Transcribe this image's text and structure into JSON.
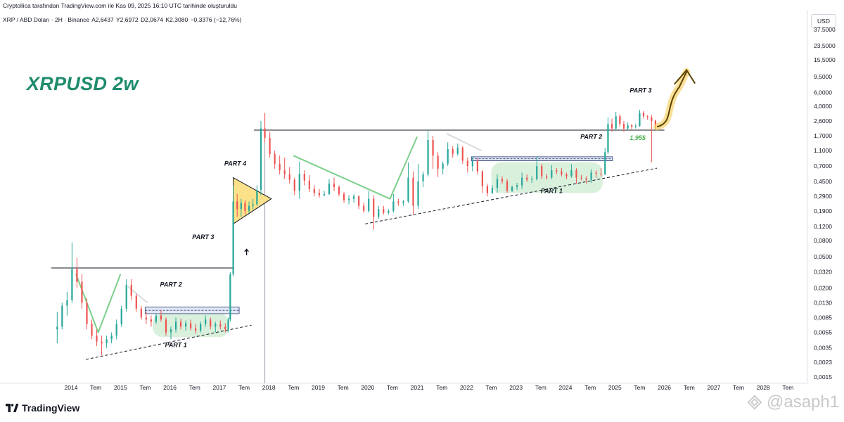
{
  "header": {
    "attribution": "Cryptollica tarafından TradingView.com ile Kas 09, 2025 16:10 UTC tarihinde oluşturuldu"
  },
  "symbol_bar": {
    "symbol": "XRP / ABD Doları · 2H · Binance",
    "open": "A2,6437",
    "high": "Y2,6972",
    "low": "D2,0674",
    "close": "K2,3080",
    "change": "−0,3376 (−12,76%)"
  },
  "title_overlay": "XRPUSD 2w",
  "currency": "USD",
  "logo_text": "TradingView",
  "watermark": "@asaph1",
  "colors": {
    "up": "#26a69a",
    "down": "#ef5350",
    "accent_green": "#1f8b6d",
    "highlight": "#f5c542"
  },
  "chart_data": {
    "type": "candlestick",
    "scale": "log",
    "x_ticks": [
      "2014",
      "Tem",
      "2015",
      "Tem",
      "2016",
      "Tem",
      "2017",
      "Tem",
      "2018",
      "Tem",
      "2019",
      "Tem",
      "2020",
      "Tem",
      "2021",
      "Tem",
      "2022",
      "Tem",
      "2023",
      "Tem",
      "2024",
      "Tem",
      "2025",
      "Tem",
      "2026",
      "Tem",
      "2027",
      "Tem",
      "2028",
      "Tem"
    ],
    "y_ticks": [
      {
        "value": 37.5,
        "label": "37,5000"
      },
      {
        "value": 23.5,
        "label": "23,5000"
      },
      {
        "value": 15.5,
        "label": "15,5000"
      },
      {
        "value": 9.5,
        "label": "9,5000"
      },
      {
        "value": 6.0,
        "label": "6,0000"
      },
      {
        "value": 4.0,
        "label": "4,0000"
      },
      {
        "value": 2.6,
        "label": "2,6000"
      },
      {
        "value": 1.7,
        "label": "1,7000"
      },
      {
        "value": 1.1,
        "label": "1,1000"
      },
      {
        "value": 0.7,
        "label": "0,7000"
      },
      {
        "value": 0.45,
        "label": "0,4500"
      },
      {
        "value": 0.29,
        "label": "0,2900"
      },
      {
        "value": 0.19,
        "label": "0,1900"
      },
      {
        "value": 0.12,
        "label": "0,1200"
      },
      {
        "value": 0.08,
        "label": "0,0800"
      },
      {
        "value": 0.05,
        "label": "0,0500"
      },
      {
        "value": 0.032,
        "label": "0,0320"
      },
      {
        "value": 0.02,
        "label": "0,0200"
      },
      {
        "value": 0.013,
        "label": "0,0130"
      },
      {
        "value": 0.0085,
        "label": "0,0085"
      },
      {
        "value": 0.0055,
        "label": "0,0055"
      },
      {
        "value": 0.0035,
        "label": "0,0035"
      },
      {
        "value": 0.0023,
        "label": "0,0023"
      },
      {
        "value": 0.0015,
        "label": "0,0015"
      }
    ],
    "annotations": [
      {
        "text": "PART 1",
        "year": 2015.9,
        "price": 0.0036
      },
      {
        "text": "PART 2",
        "year": 2015.8,
        "price": 0.021
      },
      {
        "text": "PART 3",
        "year": 2016.45,
        "price": 0.083
      },
      {
        "text": "PART 4",
        "year": 2017.1,
        "price": 0.71
      },
      {
        "text": "PART 1",
        "year": 2023.5,
        "price": 0.32
      },
      {
        "text": "PART 2",
        "year": 2024.3,
        "price": 1.55
      },
      {
        "text": "PART 3",
        "year": 2025.3,
        "price": 6.0
      }
    ],
    "price_label": {
      "text": "1,95$",
      "year": 2025.3,
      "price": 1.5
    },
    "levels": [
      {
        "price": 0.036,
        "from": 2013.6,
        "to": 2017.3
      },
      {
        "price": 2.0,
        "from": 2017.7,
        "to": 2026.0
      }
    ],
    "series": [
      {
        "t": 2013.72,
        "o": 0.006,
        "h": 0.01,
        "l": 0.004,
        "c": 0.0065
      },
      {
        "t": 2013.82,
        "o": 0.0065,
        "h": 0.013,
        "l": 0.006,
        "c": 0.012
      },
      {
        "t": 2013.92,
        "o": 0.012,
        "h": 0.018,
        "l": 0.009,
        "c": 0.014
      },
      {
        "t": 2014.02,
        "o": 0.014,
        "h": 0.076,
        "l": 0.013,
        "c": 0.035
      },
      {
        "t": 2014.12,
        "o": 0.035,
        "h": 0.048,
        "l": 0.02,
        "c": 0.024
      },
      {
        "t": 2014.22,
        "o": 0.024,
        "h": 0.03,
        "l": 0.011,
        "c": 0.013
      },
      {
        "t": 2014.32,
        "o": 0.013,
        "h": 0.015,
        "l": 0.006,
        "c": 0.007
      },
      {
        "t": 2014.42,
        "o": 0.007,
        "h": 0.008,
        "l": 0.0045,
        "c": 0.005
      },
      {
        "t": 2014.52,
        "o": 0.005,
        "h": 0.006,
        "l": 0.0037,
        "c": 0.0042
      },
      {
        "t": 2014.62,
        "o": 0.0042,
        "h": 0.005,
        "l": 0.0028,
        "c": 0.004
      },
      {
        "t": 2014.72,
        "o": 0.004,
        "h": 0.005,
        "l": 0.0035,
        "c": 0.0045
      },
      {
        "t": 2014.82,
        "o": 0.0045,
        "h": 0.0055,
        "l": 0.004,
        "c": 0.005
      },
      {
        "t": 2014.92,
        "o": 0.005,
        "h": 0.008,
        "l": 0.0045,
        "c": 0.007
      },
      {
        "t": 2015.02,
        "o": 0.007,
        "h": 0.012,
        "l": 0.0065,
        "c": 0.011
      },
      {
        "t": 2015.12,
        "o": 0.011,
        "h": 0.026,
        "l": 0.01,
        "c": 0.022
      },
      {
        "t": 2015.22,
        "o": 0.022,
        "h": 0.026,
        "l": 0.014,
        "c": 0.016
      },
      {
        "t": 2015.32,
        "o": 0.016,
        "h": 0.017,
        "l": 0.01,
        "c": 0.011
      },
      {
        "t": 2015.42,
        "o": 0.011,
        "h": 0.012,
        "l": 0.008,
        "c": 0.0085
      },
      {
        "t": 2015.52,
        "o": 0.0085,
        "h": 0.01,
        "l": 0.007,
        "c": 0.008
      },
      {
        "t": 2015.62,
        "o": 0.008,
        "h": 0.009,
        "l": 0.0065,
        "c": 0.0075
      },
      {
        "t": 2015.72,
        "o": 0.0075,
        "h": 0.0095,
        "l": 0.007,
        "c": 0.009
      },
      {
        "t": 2015.82,
        "o": 0.009,
        "h": 0.0105,
        "l": 0.0075,
        "c": 0.008
      },
      {
        "t": 2015.92,
        "o": 0.008,
        "h": 0.0085,
        "l": 0.005,
        "c": 0.0055
      },
      {
        "t": 2016.02,
        "o": 0.0055,
        "h": 0.0065,
        "l": 0.0045,
        "c": 0.006
      },
      {
        "t": 2016.12,
        "o": 0.006,
        "h": 0.0085,
        "l": 0.0055,
        "c": 0.0075
      },
      {
        "t": 2016.22,
        "o": 0.0075,
        "h": 0.0082,
        "l": 0.006,
        "c": 0.0065
      },
      {
        "t": 2016.32,
        "o": 0.0065,
        "h": 0.0078,
        "l": 0.0058,
        "c": 0.0072
      },
      {
        "t": 2016.42,
        "o": 0.0072,
        "h": 0.008,
        "l": 0.0058,
        "c": 0.0062
      },
      {
        "t": 2016.52,
        "o": 0.0062,
        "h": 0.007,
        "l": 0.0053,
        "c": 0.0058
      },
      {
        "t": 2016.62,
        "o": 0.0058,
        "h": 0.0075,
        "l": 0.0055,
        "c": 0.007
      },
      {
        "t": 2016.72,
        "o": 0.007,
        "h": 0.009,
        "l": 0.0065,
        "c": 0.008
      },
      {
        "t": 2016.82,
        "o": 0.008,
        "h": 0.0085,
        "l": 0.006,
        "c": 0.0065
      },
      {
        "t": 2016.92,
        "o": 0.0065,
        "h": 0.0075,
        "l": 0.0055,
        "c": 0.007
      },
      {
        "t": 2017.02,
        "o": 0.007,
        "h": 0.0078,
        "l": 0.006,
        "c": 0.0065
      },
      {
        "t": 2017.12,
        "o": 0.0065,
        "h": 0.0072,
        "l": 0.0055,
        "c": 0.006
      },
      {
        "t": 2017.18,
        "o": 0.006,
        "h": 0.0085,
        "l": 0.0055,
        "c": 0.008
      },
      {
        "t": 2017.22,
        "o": 0.008,
        "h": 0.032,
        "l": 0.0075,
        "c": 0.03
      },
      {
        "t": 2017.28,
        "o": 0.03,
        "h": 0.4,
        "l": 0.028,
        "c": 0.25
      },
      {
        "t": 2017.36,
        "o": 0.25,
        "h": 0.31,
        "l": 0.16,
        "c": 0.2
      },
      {
        "t": 2017.44,
        "o": 0.2,
        "h": 0.27,
        "l": 0.16,
        "c": 0.24
      },
      {
        "t": 2017.52,
        "o": 0.24,
        "h": 0.26,
        "l": 0.17,
        "c": 0.19
      },
      {
        "t": 2017.6,
        "o": 0.19,
        "h": 0.25,
        "l": 0.18,
        "c": 0.22
      },
      {
        "t": 2017.68,
        "o": 0.22,
        "h": 0.27,
        "l": 0.2,
        "c": 0.23
      },
      {
        "t": 2017.76,
        "o": 0.23,
        "h": 0.4,
        "l": 0.22,
        "c": 0.35
      },
      {
        "t": 2017.84,
        "o": 0.35,
        "h": 2.6,
        "l": 0.3,
        "c": 2.1
      },
      {
        "t": 2017.92,
        "o": 2.1,
        "h": 3.3,
        "l": 1.4,
        "c": 1.6
      },
      {
        "t": 2018.02,
        "o": 1.6,
        "h": 1.9,
        "l": 0.9,
        "c": 1.0
      },
      {
        "t": 2018.12,
        "o": 1.0,
        "h": 1.1,
        "l": 0.65,
        "c": 0.75
      },
      {
        "t": 2018.22,
        "o": 0.75,
        "h": 0.95,
        "l": 0.55,
        "c": 0.62
      },
      {
        "t": 2018.32,
        "o": 0.62,
        "h": 0.9,
        "l": 0.48,
        "c": 0.55
      },
      {
        "t": 2018.42,
        "o": 0.55,
        "h": 0.68,
        "l": 0.42,
        "c": 0.47
      },
      {
        "t": 2018.52,
        "o": 0.47,
        "h": 0.5,
        "l": 0.3,
        "c": 0.34
      },
      {
        "t": 2018.62,
        "o": 0.34,
        "h": 0.8,
        "l": 0.27,
        "c": 0.56
      },
      {
        "t": 2018.72,
        "o": 0.56,
        "h": 0.62,
        "l": 0.4,
        "c": 0.46
      },
      {
        "t": 2018.82,
        "o": 0.46,
        "h": 0.54,
        "l": 0.33,
        "c": 0.36
      },
      {
        "t": 2018.92,
        "o": 0.36,
        "h": 0.4,
        "l": 0.29,
        "c": 0.32
      },
      {
        "t": 2019.02,
        "o": 0.32,
        "h": 0.36,
        "l": 0.28,
        "c": 0.3
      },
      {
        "t": 2019.12,
        "o": 0.3,
        "h": 0.34,
        "l": 0.29,
        "c": 0.31
      },
      {
        "t": 2019.22,
        "o": 0.31,
        "h": 0.48,
        "l": 0.3,
        "c": 0.42
      },
      {
        "t": 2019.32,
        "o": 0.42,
        "h": 0.5,
        "l": 0.34,
        "c": 0.38
      },
      {
        "t": 2019.42,
        "o": 0.38,
        "h": 0.4,
        "l": 0.29,
        "c": 0.31
      },
      {
        "t": 2019.52,
        "o": 0.31,
        "h": 0.33,
        "l": 0.24,
        "c": 0.26
      },
      {
        "t": 2019.62,
        "o": 0.26,
        "h": 0.3,
        "l": 0.23,
        "c": 0.27
      },
      {
        "t": 2019.72,
        "o": 0.27,
        "h": 0.31,
        "l": 0.24,
        "c": 0.29
      },
      {
        "t": 2019.82,
        "o": 0.29,
        "h": 0.3,
        "l": 0.2,
        "c": 0.22
      },
      {
        "t": 2019.92,
        "o": 0.22,
        "h": 0.24,
        "l": 0.18,
        "c": 0.19
      },
      {
        "t": 2020.02,
        "o": 0.19,
        "h": 0.34,
        "l": 0.18,
        "c": 0.27
      },
      {
        "t": 2020.12,
        "o": 0.27,
        "h": 0.3,
        "l": 0.11,
        "c": 0.16
      },
      {
        "t": 2020.22,
        "o": 0.16,
        "h": 0.22,
        "l": 0.15,
        "c": 0.2
      },
      {
        "t": 2020.32,
        "o": 0.2,
        "h": 0.22,
        "l": 0.17,
        "c": 0.18
      },
      {
        "t": 2020.42,
        "o": 0.18,
        "h": 0.2,
        "l": 0.17,
        "c": 0.19
      },
      {
        "t": 2020.52,
        "o": 0.19,
        "h": 0.31,
        "l": 0.18,
        "c": 0.25
      },
      {
        "t": 2020.62,
        "o": 0.25,
        "h": 0.27,
        "l": 0.22,
        "c": 0.24
      },
      {
        "t": 2020.72,
        "o": 0.24,
        "h": 0.26,
        "l": 0.22,
        "c": 0.25
      },
      {
        "t": 2020.82,
        "o": 0.25,
        "h": 0.78,
        "l": 0.24,
        "c": 0.5
      },
      {
        "t": 2020.92,
        "o": 0.5,
        "h": 0.6,
        "l": 0.17,
        "c": 0.22
      },
      {
        "t": 2021.02,
        "o": 0.22,
        "h": 0.75,
        "l": 0.2,
        "c": 0.45
      },
      {
        "t": 2021.12,
        "o": 0.45,
        "h": 0.6,
        "l": 0.38,
        "c": 0.55
      },
      {
        "t": 2021.22,
        "o": 0.55,
        "h": 1.96,
        "l": 0.52,
        "c": 1.5
      },
      {
        "t": 2021.32,
        "o": 1.5,
        "h": 1.7,
        "l": 0.65,
        "c": 0.95
      },
      {
        "t": 2021.42,
        "o": 0.95,
        "h": 1.05,
        "l": 0.51,
        "c": 0.65
      },
      {
        "t": 2021.52,
        "o": 0.65,
        "h": 0.8,
        "l": 0.55,
        "c": 0.75
      },
      {
        "t": 2021.62,
        "o": 0.75,
        "h": 1.4,
        "l": 0.7,
        "c": 1.15
      },
      {
        "t": 2021.72,
        "o": 1.15,
        "h": 1.25,
        "l": 0.9,
        "c": 1.0
      },
      {
        "t": 2021.82,
        "o": 1.0,
        "h": 1.35,
        "l": 0.95,
        "c": 1.2
      },
      {
        "t": 2021.92,
        "o": 1.2,
        "h": 1.25,
        "l": 0.75,
        "c": 0.82
      },
      {
        "t": 2022.02,
        "o": 0.82,
        "h": 0.9,
        "l": 0.58,
        "c": 0.7
      },
      {
        "t": 2022.12,
        "o": 0.7,
        "h": 0.92,
        "l": 0.6,
        "c": 0.82
      },
      {
        "t": 2022.22,
        "o": 0.82,
        "h": 0.88,
        "l": 0.55,
        "c": 0.6
      },
      {
        "t": 2022.32,
        "o": 0.6,
        "h": 0.62,
        "l": 0.32,
        "c": 0.39
      },
      {
        "t": 2022.42,
        "o": 0.39,
        "h": 0.42,
        "l": 0.29,
        "c": 0.32
      },
      {
        "t": 2022.52,
        "o": 0.32,
        "h": 0.4,
        "l": 0.31,
        "c": 0.37
      },
      {
        "t": 2022.62,
        "o": 0.37,
        "h": 0.55,
        "l": 0.32,
        "c": 0.48
      },
      {
        "t": 2022.72,
        "o": 0.48,
        "h": 0.52,
        "l": 0.42,
        "c": 0.45
      },
      {
        "t": 2022.82,
        "o": 0.45,
        "h": 0.48,
        "l": 0.32,
        "c": 0.34
      },
      {
        "t": 2022.92,
        "o": 0.34,
        "h": 0.4,
        "l": 0.33,
        "c": 0.38
      },
      {
        "t": 2023.02,
        "o": 0.38,
        "h": 0.43,
        "l": 0.35,
        "c": 0.4
      },
      {
        "t": 2023.12,
        "o": 0.4,
        "h": 0.58,
        "l": 0.36,
        "c": 0.5
      },
      {
        "t": 2023.22,
        "o": 0.5,
        "h": 0.55,
        "l": 0.44,
        "c": 0.47
      },
      {
        "t": 2023.32,
        "o": 0.47,
        "h": 0.52,
        "l": 0.43,
        "c": 0.48
      },
      {
        "t": 2023.42,
        "o": 0.48,
        "h": 0.93,
        "l": 0.46,
        "c": 0.7
      },
      {
        "t": 2023.52,
        "o": 0.7,
        "h": 0.75,
        "l": 0.48,
        "c": 0.52
      },
      {
        "t": 2023.62,
        "o": 0.52,
        "h": 0.56,
        "l": 0.47,
        "c": 0.5
      },
      {
        "t": 2023.72,
        "o": 0.5,
        "h": 0.72,
        "l": 0.48,
        "c": 0.62
      },
      {
        "t": 2023.82,
        "o": 0.62,
        "h": 0.66,
        "l": 0.55,
        "c": 0.6
      },
      {
        "t": 2023.92,
        "o": 0.6,
        "h": 0.66,
        "l": 0.52,
        "c": 0.55
      },
      {
        "t": 2024.02,
        "o": 0.55,
        "h": 0.58,
        "l": 0.48,
        "c": 0.52
      },
      {
        "t": 2024.12,
        "o": 0.52,
        "h": 0.74,
        "l": 0.5,
        "c": 0.62
      },
      {
        "t": 2024.22,
        "o": 0.62,
        "h": 0.66,
        "l": 0.42,
        "c": 0.5
      },
      {
        "t": 2024.32,
        "o": 0.5,
        "h": 0.54,
        "l": 0.46,
        "c": 0.49
      },
      {
        "t": 2024.42,
        "o": 0.49,
        "h": 0.52,
        "l": 0.42,
        "c": 0.47
      },
      {
        "t": 2024.52,
        "o": 0.47,
        "h": 0.64,
        "l": 0.43,
        "c": 0.58
      },
      {
        "t": 2024.62,
        "o": 0.58,
        "h": 0.62,
        "l": 0.5,
        "c": 0.56
      },
      {
        "t": 2024.72,
        "o": 0.56,
        "h": 0.66,
        "l": 0.52,
        "c": 0.55
      },
      {
        "t": 2024.8,
        "o": 0.55,
        "h": 1.2,
        "l": 0.54,
        "c": 1.05
      },
      {
        "t": 2024.86,
        "o": 1.05,
        "h": 2.9,
        "l": 1.0,
        "c": 2.4
      },
      {
        "t": 2024.94,
        "o": 2.4,
        "h": 2.8,
        "l": 1.9,
        "c": 2.1
      },
      {
        "t": 2025.02,
        "o": 2.1,
        "h": 3.4,
        "l": 2.0,
        "c": 3.0
      },
      {
        "t": 2025.1,
        "o": 3.0,
        "h": 3.2,
        "l": 2.2,
        "c": 2.4
      },
      {
        "t": 2025.18,
        "o": 2.4,
        "h": 2.6,
        "l": 1.9,
        "c": 2.1
      },
      {
        "t": 2025.26,
        "o": 2.1,
        "h": 2.5,
        "l": 2.0,
        "c": 2.3
      },
      {
        "t": 2025.34,
        "o": 2.3,
        "h": 2.4,
        "l": 2.05,
        "c": 2.2
      },
      {
        "t": 2025.42,
        "o": 2.2,
        "h": 2.4,
        "l": 2.1,
        "c": 2.25
      },
      {
        "t": 2025.5,
        "o": 2.25,
        "h": 3.6,
        "l": 2.2,
        "c": 3.3
      },
      {
        "t": 2025.58,
        "o": 3.3,
        "h": 3.5,
        "l": 2.8,
        "c": 3.0
      },
      {
        "t": 2025.66,
        "o": 3.0,
        "h": 3.1,
        "l": 2.7,
        "c": 2.9
      },
      {
        "t": 2025.74,
        "o": 2.9,
        "h": 3.1,
        "l": 0.78,
        "c": 2.6
      },
      {
        "t": 2025.82,
        "o": 2.6437,
        "h": 2.6972,
        "l": 2.0674,
        "c": 2.308
      }
    ]
  }
}
